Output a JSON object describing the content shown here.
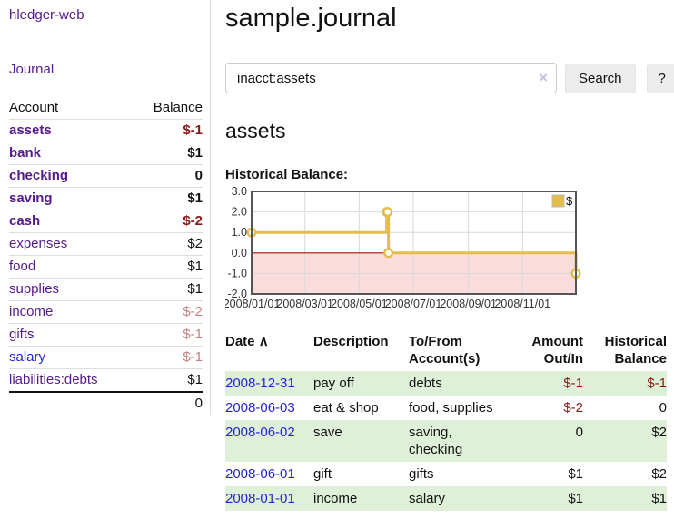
{
  "sidebar": {
    "brand": "hledger-web",
    "journal_link": "Journal",
    "accounts": {
      "headers": {
        "account": "Account",
        "balance": "Balance"
      },
      "rows": [
        {
          "name": "assets",
          "indent": 1,
          "bold": true,
          "balance": "$-1",
          "balance_style": "neg"
        },
        {
          "name": "bank",
          "indent": 2,
          "bold": true,
          "balance": "$1",
          "balance_style": ""
        },
        {
          "name": "checking",
          "indent": 3,
          "bold": true,
          "balance": "0",
          "balance_style": ""
        },
        {
          "name": "saving",
          "indent": 3,
          "bold": true,
          "balance": "$1",
          "balance_style": ""
        },
        {
          "name": "cash",
          "indent": 2,
          "bold": true,
          "balance": "$-2",
          "balance_style": "neg"
        },
        {
          "name": "expenses",
          "indent": 1,
          "bold": false,
          "balance": "$2",
          "balance_style": ""
        },
        {
          "name": "food",
          "indent": 2,
          "bold": false,
          "balance": "$1",
          "balance_style": ""
        },
        {
          "name": "supplies",
          "indent": 2,
          "bold": false,
          "balance": "$1",
          "balance_style": ""
        },
        {
          "name": "income",
          "indent": 1,
          "bold": false,
          "balance": "$-2",
          "balance_style": "neg-dim"
        },
        {
          "name": "gifts",
          "indent": 2,
          "bold": false,
          "balance": "$-1",
          "balance_style": "neg-dim"
        },
        {
          "name": "salary",
          "indent": 2,
          "bold": false,
          "balance": "$-1",
          "balance_style": "neg-dim",
          "blue": true
        },
        {
          "name": "liabilities:debts",
          "indent": 1,
          "bold": false,
          "balance": "$1",
          "balance_style": ""
        }
      ],
      "total": "0"
    }
  },
  "header": {
    "title": "sample.journal"
  },
  "search": {
    "value": "inacct:assets",
    "clear_icon": "×",
    "search_label": "Search",
    "help_label": "?"
  },
  "account_page": {
    "heading": "assets",
    "chart_label": "Historical Balance:"
  },
  "chart_data": {
    "type": "line",
    "step": true,
    "title": "Historical Balance",
    "series": [
      {
        "name": "$",
        "x": [
          "2008-01-01",
          "2008-06-01",
          "2008-06-02",
          "2008-06-03",
          "2008-12-31"
        ],
        "values": [
          1,
          2,
          2,
          0,
          -1
        ]
      }
    ],
    "xlim": [
      "2008-01-01",
      "2008-12-31"
    ],
    "ylim": [
      -2,
      3
    ],
    "x_ticks": [
      "2008/01/01",
      "2008/03/01",
      "2008/05/01",
      "2008/07/01",
      "2008/09/01",
      "2008/11/01"
    ],
    "y_ticks": [
      "3.0",
      "2.0",
      "1.0",
      "0.0",
      "-1.0",
      "-2.0"
    ],
    "legend": {
      "position": "top-right",
      "label": "$"
    },
    "grid": true,
    "colors": {
      "line": "#e3bd49",
      "marker_fill": "#ffffff",
      "negative_region": "#fbdcdc",
      "zero_line": "#9e1414",
      "grid": "#d9d9d9",
      "border": "#555555",
      "tick_text": "#333333"
    }
  },
  "register_table": {
    "sort_icon": "∧",
    "headers": {
      "date": "Date",
      "description": "Description",
      "accounts": "To/From Account(s)",
      "amount": "Amount Out/In",
      "balance": "Historical Balance"
    },
    "rows": [
      {
        "date": "2008-12-31",
        "description": "pay off",
        "accounts": "debts",
        "amount": "$-1",
        "amount_neg": true,
        "balance": "$-1",
        "balance_neg": true,
        "shaded": true
      },
      {
        "date": "2008-06-03",
        "description": "eat & shop",
        "accounts": "food, supplies",
        "amount": "$-2",
        "amount_neg": true,
        "balance": "0",
        "balance_neg": false,
        "shaded": false
      },
      {
        "date": "2008-06-02",
        "description": "save",
        "accounts": "saving, checking",
        "amount": "0",
        "amount_neg": false,
        "balance": "$2",
        "balance_neg": false,
        "shaded": true
      },
      {
        "date": "2008-06-01",
        "description": "gift",
        "accounts": "gifts",
        "amount": "$1",
        "amount_neg": false,
        "balance": "$2",
        "balance_neg": false,
        "shaded": false
      },
      {
        "date": "2008-01-01",
        "description": "income",
        "accounts": "salary",
        "amount": "$1",
        "amount_neg": false,
        "balance": "$1",
        "balance_neg": false,
        "shaded": true
      }
    ]
  }
}
